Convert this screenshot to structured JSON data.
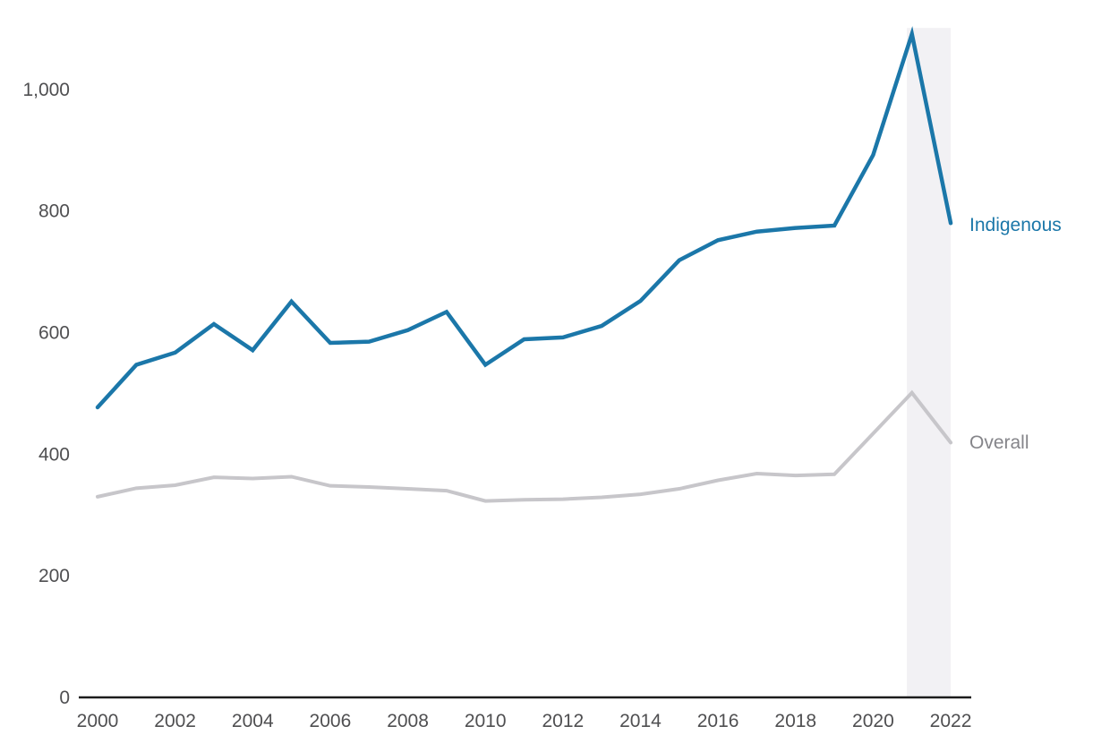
{
  "chart_data": {
    "type": "line",
    "title": "",
    "xlabel": "",
    "ylabel": "",
    "grid": false,
    "legend_position": "end-of-line-labels-right",
    "x": [
      2000,
      2001,
      2002,
      2003,
      2004,
      2005,
      2006,
      2007,
      2008,
      2009,
      2010,
      2011,
      2012,
      2013,
      2014,
      2015,
      2016,
      2017,
      2018,
      2019,
      2020,
      2021,
      2022
    ],
    "series": [
      {
        "name": "Indigenous",
        "color": "#1b77a9",
        "width": 4.5,
        "values": [
          477,
          547,
          567,
          614,
          571,
          651,
          583,
          585,
          604,
          634,
          547,
          589,
          592,
          611,
          652,
          719,
          752,
          766,
          772,
          776,
          892,
          1091,
          780
        ]
      },
      {
        "name": "Overall",
        "color": "#c7c6ca",
        "width": 4,
        "values": [
          330,
          344,
          349,
          362,
          360,
          363,
          348,
          346,
          343,
          340,
          323,
          325,
          326,
          329,
          334,
          343,
          357,
          368,
          365,
          367,
          434,
          501,
          419
        ]
      }
    ],
    "xlim": [
      2000,
      2022
    ],
    "ylim": [
      0,
      1120
    ],
    "x_ticks": [
      {
        "value": 2000,
        "label": "2000"
      },
      {
        "value": 2002,
        "label": "2002"
      },
      {
        "value": 2004,
        "label": "2004"
      },
      {
        "value": 2006,
        "label": "2006"
      },
      {
        "value": 2008,
        "label": "2008"
      },
      {
        "value": 2010,
        "label": "2010"
      },
      {
        "value": 2012,
        "label": "2012"
      },
      {
        "value": 2014,
        "label": "2014"
      },
      {
        "value": 2016,
        "label": "2016"
      },
      {
        "value": 2018,
        "label": "2018"
      },
      {
        "value": 2020,
        "label": "2020"
      },
      {
        "value": 2022,
        "label": "2022"
      }
    ],
    "y_ticks": [
      {
        "value": 0,
        "label": "0"
      },
      {
        "value": 200,
        "label": "200"
      },
      {
        "value": 400,
        "label": "400"
      },
      {
        "value": 600,
        "label": "600"
      },
      {
        "value": 800,
        "label": "800"
      },
      {
        "value": 1000,
        "label": "1,000"
      }
    ],
    "highlight_band": {
      "from_year": 2020.87,
      "to_year": 2022,
      "top_value": 1101,
      "color": "#f2f1f4"
    }
  },
  "colors": {
    "axis_line": "#1c1c1c",
    "tick_label": "#4f4f51",
    "overall_label_text": "#85858a",
    "background": "#ffffff"
  }
}
